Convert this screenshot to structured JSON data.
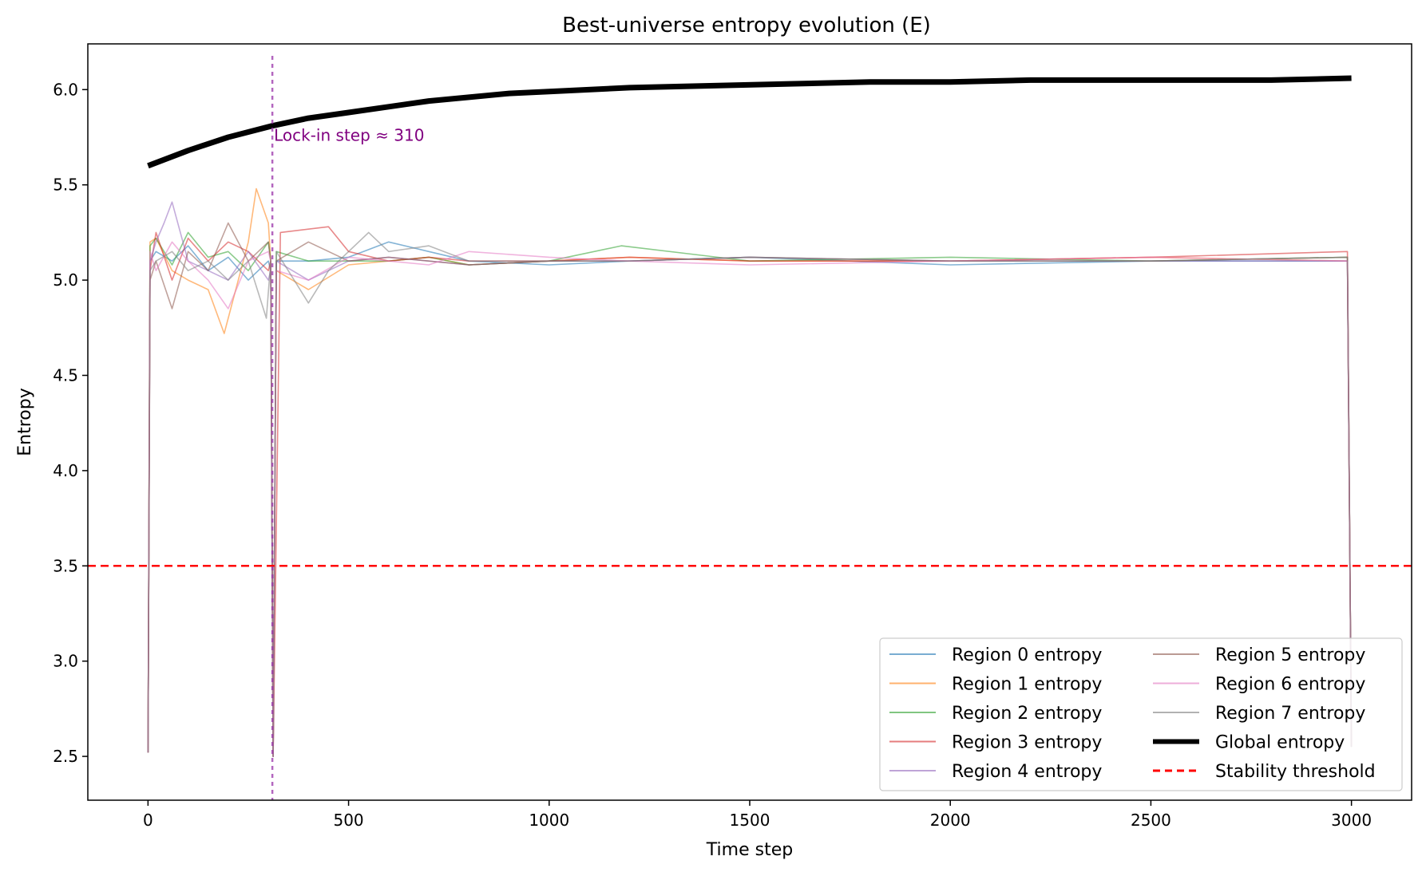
{
  "chart_data": {
    "type": "line",
    "title": "Best-universe entropy evolution (E)",
    "xlabel": "Time step",
    "ylabel": "Entropy",
    "xlim": [
      -150,
      3150
    ],
    "ylim": [
      2.27,
      6.24
    ],
    "xticks": [
      0,
      500,
      1000,
      1500,
      2000,
      2500,
      3000
    ],
    "yticks": [
      2.5,
      3.0,
      3.5,
      4.0,
      4.5,
      5.0,
      5.5,
      6.0
    ],
    "ytick_labels": [
      "2.5",
      "3.0",
      "3.5",
      "4.0",
      "4.5",
      "5.0",
      "5.5",
      "6.0"
    ],
    "grid": false,
    "legend_position": "lower-right",
    "legend_columns": 2,
    "series": [
      {
        "name": "Region 0 entropy",
        "color": "#1f77b4",
        "x": [
          0,
          5,
          20,
          60,
          100,
          150,
          200,
          250,
          300,
          306,
          312,
          320,
          400,
          500,
          600,
          700,
          800,
          1000,
          1200,
          1500,
          2000,
          2500,
          2990,
          3000
        ],
        "y": [
          2.52,
          5.1,
          5.15,
          5.1,
          5.18,
          5.05,
          5.12,
          5.0,
          5.1,
          5.05,
          2.5,
          5.1,
          5.1,
          5.12,
          5.2,
          5.15,
          5.1,
          5.08,
          5.1,
          5.12,
          5.08,
          5.1,
          5.1,
          2.55
        ]
      },
      {
        "name": "Region 1 entropy",
        "color": "#ff7f0e",
        "x": [
          0,
          5,
          20,
          60,
          100,
          150,
          190,
          250,
          270,
          300,
          306,
          312,
          320,
          400,
          500,
          600,
          700,
          800,
          1000,
          1200,
          1500,
          2000,
          2500,
          2990,
          3000
        ],
        "y": [
          2.52,
          5.2,
          5.22,
          5.05,
          5.0,
          4.95,
          4.72,
          5.2,
          5.48,
          5.3,
          5.1,
          2.5,
          5.05,
          4.95,
          5.08,
          5.1,
          5.12,
          5.08,
          5.1,
          5.12,
          5.1,
          5.1,
          5.12,
          5.1,
          2.55
        ]
      },
      {
        "name": "Region 2 entropy",
        "color": "#2ca02c",
        "x": [
          0,
          5,
          20,
          60,
          100,
          150,
          200,
          250,
          300,
          306,
          312,
          320,
          400,
          500,
          600,
          700,
          800,
          1000,
          1180,
          1500,
          2000,
          2500,
          2990,
          3000
        ],
        "y": [
          2.52,
          5.18,
          5.22,
          5.08,
          5.25,
          5.12,
          5.15,
          5.05,
          5.2,
          5.1,
          2.5,
          5.15,
          5.1,
          5.1,
          5.1,
          5.12,
          5.08,
          5.1,
          5.18,
          5.1,
          5.12,
          5.1,
          5.12,
          2.55
        ]
      },
      {
        "name": "Region 3 entropy",
        "color": "#d62728",
        "x": [
          0,
          5,
          20,
          60,
          100,
          150,
          200,
          250,
          300,
          306,
          312,
          330,
          450,
          500,
          600,
          700,
          800,
          1000,
          1200,
          1500,
          2000,
          2500,
          2990,
          3000
        ],
        "y": [
          2.52,
          5.05,
          5.25,
          5.0,
          5.22,
          5.1,
          5.2,
          5.15,
          5.05,
          5.1,
          2.5,
          5.25,
          5.28,
          5.15,
          5.1,
          5.12,
          5.1,
          5.1,
          5.12,
          5.1,
          5.1,
          5.12,
          5.15,
          2.55
        ]
      },
      {
        "name": "Region 4 entropy",
        "color": "#9467bd",
        "x": [
          0,
          5,
          20,
          40,
          60,
          100,
          150,
          200,
          250,
          300,
          306,
          312,
          320,
          400,
          500,
          600,
          700,
          800,
          1000,
          1200,
          1500,
          2000,
          2500,
          2990,
          3000
        ],
        "y": [
          2.52,
          5.1,
          5.2,
          5.3,
          5.41,
          5.1,
          5.05,
          5.0,
          5.15,
          5.0,
          5.05,
          2.5,
          5.1,
          5.0,
          5.1,
          5.12,
          5.1,
          5.08,
          5.1,
          5.1,
          5.12,
          5.1,
          5.1,
          5.1,
          2.55
        ]
      },
      {
        "name": "Region 5 entropy",
        "color": "#8c564b",
        "x": [
          0,
          5,
          20,
          60,
          100,
          150,
          200,
          250,
          300,
          306,
          312,
          320,
          400,
          500,
          600,
          700,
          800,
          1000,
          1200,
          1500,
          2000,
          2500,
          2990,
          3000
        ],
        "y": [
          2.52,
          5.0,
          5.1,
          4.85,
          5.15,
          5.05,
          5.3,
          5.1,
          5.2,
          5.1,
          2.5,
          5.1,
          5.2,
          5.1,
          5.12,
          5.1,
          5.08,
          5.1,
          5.1,
          5.12,
          5.1,
          5.1,
          5.12,
          2.55
        ]
      },
      {
        "name": "Region 6 entropy",
        "color": "#e377c2",
        "x": [
          0,
          5,
          20,
          60,
          100,
          150,
          200,
          250,
          300,
          306,
          312,
          320,
          400,
          500,
          600,
          700,
          800,
          1000,
          1200,
          1500,
          2000,
          2500,
          2990,
          3000
        ],
        "y": [
          2.52,
          5.15,
          5.05,
          5.2,
          5.1,
          5.0,
          4.85,
          5.1,
          5.15,
          5.1,
          2.5,
          5.05,
          5.0,
          5.12,
          5.1,
          5.08,
          5.15,
          5.12,
          5.1,
          5.08,
          5.1,
          5.12,
          5.1,
          2.55
        ]
      },
      {
        "name": "Region 7 entropy",
        "color": "#7f7f7f",
        "x": [
          0,
          5,
          20,
          60,
          100,
          150,
          200,
          250,
          295,
          306,
          312,
          320,
          400,
          450,
          550,
          600,
          700,
          800,
          1000,
          1200,
          1500,
          2000,
          2500,
          2990,
          3000
        ],
        "y": [
          2.52,
          5.05,
          5.1,
          5.15,
          5.05,
          5.1,
          5.0,
          5.1,
          4.8,
          5.1,
          2.5,
          5.15,
          4.88,
          5.05,
          5.25,
          5.15,
          5.18,
          5.1,
          5.1,
          5.1,
          5.12,
          5.1,
          5.1,
          5.12,
          2.55
        ]
      },
      {
        "name": "Global entropy",
        "color": "#000000",
        "x": [
          0,
          100,
          200,
          310,
          400,
          500,
          600,
          700,
          800,
          900,
          1000,
          1200,
          1400,
          1600,
          1800,
          2000,
          2200,
          2400,
          2600,
          2800,
          3000
        ],
        "y": [
          5.6,
          5.68,
          5.75,
          5.81,
          5.85,
          5.88,
          5.91,
          5.94,
          5.96,
          5.98,
          5.99,
          6.01,
          6.02,
          6.03,
          6.04,
          6.04,
          6.05,
          6.05,
          6.05,
          6.05,
          6.06
        ]
      }
    ],
    "hlines": [
      {
        "name": "Stability threshold",
        "y": 3.5,
        "color": "#ff0000",
        "style": "dashed"
      }
    ],
    "vlines": [
      {
        "x": 310,
        "color": "#9933aa",
        "style": "dotted"
      }
    ],
    "annotations": [
      {
        "text": "Lock-in step ≈ 310",
        "x": 310,
        "y": 5.76,
        "color": "#800080"
      }
    ]
  }
}
